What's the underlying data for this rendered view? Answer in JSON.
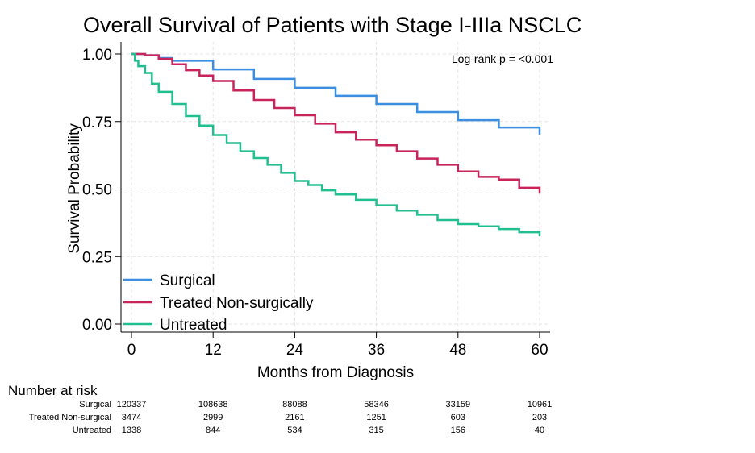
{
  "chart_data": {
    "type": "line",
    "title": "Overall Survival of Patients with Stage I-IIIa NSCLC",
    "xlabel": "Months from Diagnosis",
    "ylabel": "Survival Probability",
    "xlim": [
      0,
      60
    ],
    "ylim": [
      0,
      1
    ],
    "xticks": [
      "0",
      "12",
      "24",
      "36",
      "48",
      "60"
    ],
    "yticks": [
      "0.00",
      "0.25",
      "0.50",
      "0.75",
      "1.00"
    ],
    "grid": true,
    "legend_position": "bottom-left",
    "annotation": "Log-rank p = <0.001",
    "series": [
      {
        "name": "Surgical",
        "color": "#3b8ee0",
        "x": [
          0,
          2,
          4,
          6,
          12,
          18,
          24,
          30,
          36,
          42,
          48,
          54,
          60
        ],
        "y": [
          1.0,
          0.995,
          0.985,
          0.975,
          0.943,
          0.908,
          0.875,
          0.845,
          0.815,
          0.785,
          0.755,
          0.728,
          0.702
        ]
      },
      {
        "name": "Treated Non-surgically",
        "color": "#c8245a",
        "x": [
          0,
          2,
          4,
          6,
          8,
          10,
          12,
          15,
          18,
          21,
          24,
          27,
          30,
          33,
          36,
          39,
          42,
          45,
          48,
          51,
          54,
          57,
          60
        ],
        "y": [
          1.0,
          0.995,
          0.982,
          0.962,
          0.94,
          0.92,
          0.9,
          0.865,
          0.83,
          0.8,
          0.773,
          0.742,
          0.71,
          0.683,
          0.662,
          0.64,
          0.613,
          0.59,
          0.565,
          0.545,
          0.535,
          0.505,
          0.483
        ]
      },
      {
        "name": "Untreated",
        "color": "#21bf8f",
        "x": [
          0,
          0.5,
          1,
          2,
          3,
          4,
          6,
          8,
          10,
          12,
          14,
          16,
          18,
          20,
          22,
          24,
          26,
          28,
          30,
          33,
          36,
          39,
          42,
          45,
          48,
          51,
          54,
          57,
          60
        ],
        "y": [
          1.0,
          0.975,
          0.955,
          0.93,
          0.89,
          0.86,
          0.815,
          0.77,
          0.735,
          0.7,
          0.67,
          0.64,
          0.615,
          0.59,
          0.56,
          0.53,
          0.515,
          0.495,
          0.48,
          0.46,
          0.44,
          0.42,
          0.405,
          0.385,
          0.37,
          0.362,
          0.352,
          0.34,
          0.325
        ]
      }
    ]
  },
  "risk_table": {
    "header": "Number at risk",
    "times": [
      0,
      12,
      24,
      36,
      48,
      60
    ],
    "rows": [
      {
        "label": "Surgical",
        "values": [
          "120337",
          "108638",
          "88088",
          "58346",
          "33159",
          "10961"
        ]
      },
      {
        "label": "Treated Non-surgical",
        "values": [
          "3474",
          "2999",
          "2161",
          "1251",
          "603",
          "203"
        ]
      },
      {
        "label": "Untreated",
        "values": [
          "1338",
          "844",
          "534",
          "315",
          "156",
          "40"
        ]
      }
    ]
  }
}
